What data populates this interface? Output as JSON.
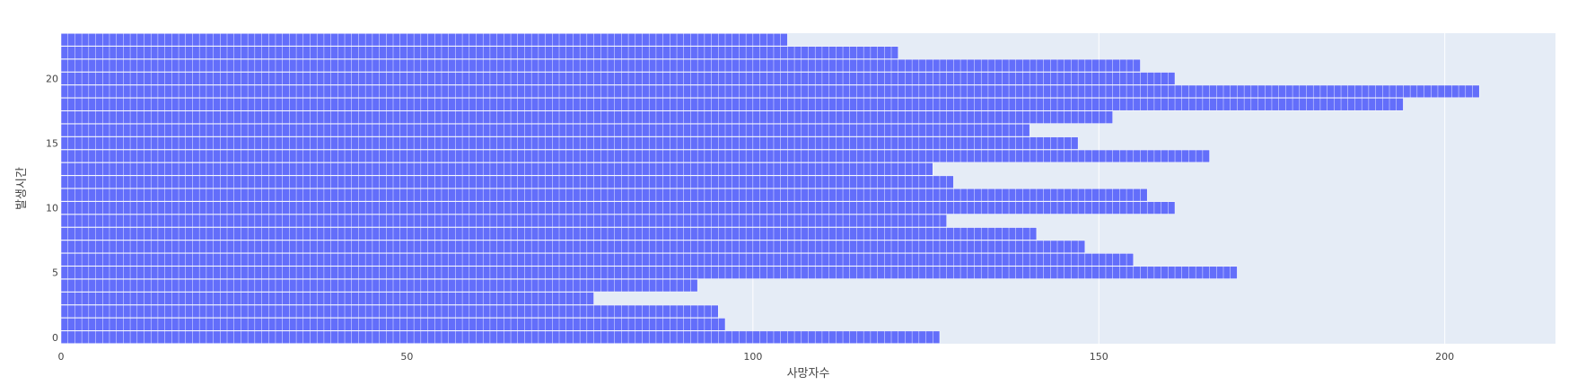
{
  "chart_data": {
    "type": "bar",
    "orientation": "horizontal",
    "title": "",
    "xlabel": "사망자수",
    "ylabel": "발생시간",
    "xlim": [
      0,
      216
    ],
    "ylim": [
      -0.5,
      23.5
    ],
    "x_ticks": [
      0,
      50,
      100,
      150,
      200
    ],
    "y_ticks": [
      0,
      5,
      10,
      15,
      20
    ],
    "grid": true,
    "legend": "none",
    "categories": [
      0,
      1,
      2,
      3,
      4,
      5,
      6,
      7,
      8,
      9,
      10,
      11,
      12,
      13,
      14,
      15,
      16,
      17,
      18,
      19,
      20,
      21,
      22,
      23
    ],
    "values": [
      127,
      96,
      95,
      77,
      92,
      170,
      155,
      148,
      141,
      128,
      161,
      157,
      129,
      126,
      166,
      147,
      140,
      152,
      194,
      205,
      161,
      156,
      121,
      105
    ],
    "colors": {
      "bar": "#636efa",
      "segment_border": "#ffffff",
      "plot_background": "#e5ecf6",
      "grid": "#ffffff"
    }
  }
}
